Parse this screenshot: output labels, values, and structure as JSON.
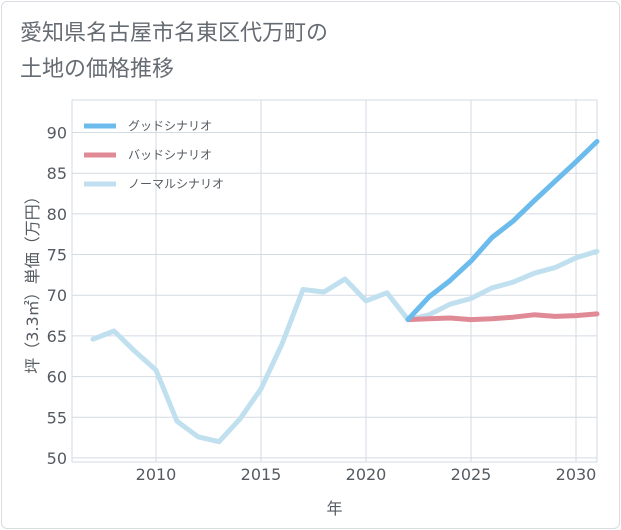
{
  "title": "愛知県名古屋市名東区代万町の\n土地の価格推移",
  "chart_data": {
    "type": "line",
    "xlabel": "年",
    "ylabel": "坪（3.3㎡）単価（万円）",
    "xlim": [
      2006,
      2031
    ],
    "ylim": [
      49.5,
      94
    ],
    "x_ticks": [
      2010,
      2015,
      2020,
      2025,
      2030
    ],
    "y_ticks": [
      50,
      55,
      60,
      65,
      70,
      75,
      80,
      85,
      90
    ],
    "grid": true,
    "legend_position": "top-left",
    "series": [
      {
        "name": "グッドシナリオ",
        "color": "#6bbbec",
        "x": [
          2022,
          2023,
          2024,
          2025,
          2026,
          2027,
          2028,
          2029,
          2030,
          2031
        ],
        "values": [
          67.0,
          69.8,
          71.8,
          74.2,
          77.1,
          79.1,
          81.6,
          84.0,
          86.4,
          88.9
        ]
      },
      {
        "name": "バッドシナリオ",
        "color": "#e08a96",
        "x": [
          2022,
          2023,
          2024,
          2025,
          2026,
          2027,
          2028,
          2029,
          2030,
          2031
        ],
        "values": [
          67.0,
          67.1,
          67.2,
          67.0,
          67.1,
          67.3,
          67.6,
          67.4,
          67.5,
          67.7
        ]
      },
      {
        "name": "ノーマルシナリオ",
        "color": "#c0e0f0",
        "x": [
          2007,
          2008,
          2009,
          2010,
          2011,
          2012,
          2013,
          2014,
          2015,
          2016,
          2017,
          2018,
          2019,
          2020,
          2021,
          2022,
          2023,
          2024,
          2025,
          2026,
          2027,
          2028,
          2029,
          2030,
          2031
        ],
        "values": [
          64.6,
          65.6,
          63.1,
          60.8,
          54.5,
          52.6,
          52.0,
          54.8,
          58.5,
          64.0,
          70.7,
          70.4,
          72.0,
          69.3,
          70.3,
          67.0,
          67.6,
          68.9,
          69.6,
          70.9,
          71.6,
          72.7,
          73.4,
          74.6,
          75.4
        ]
      }
    ]
  }
}
